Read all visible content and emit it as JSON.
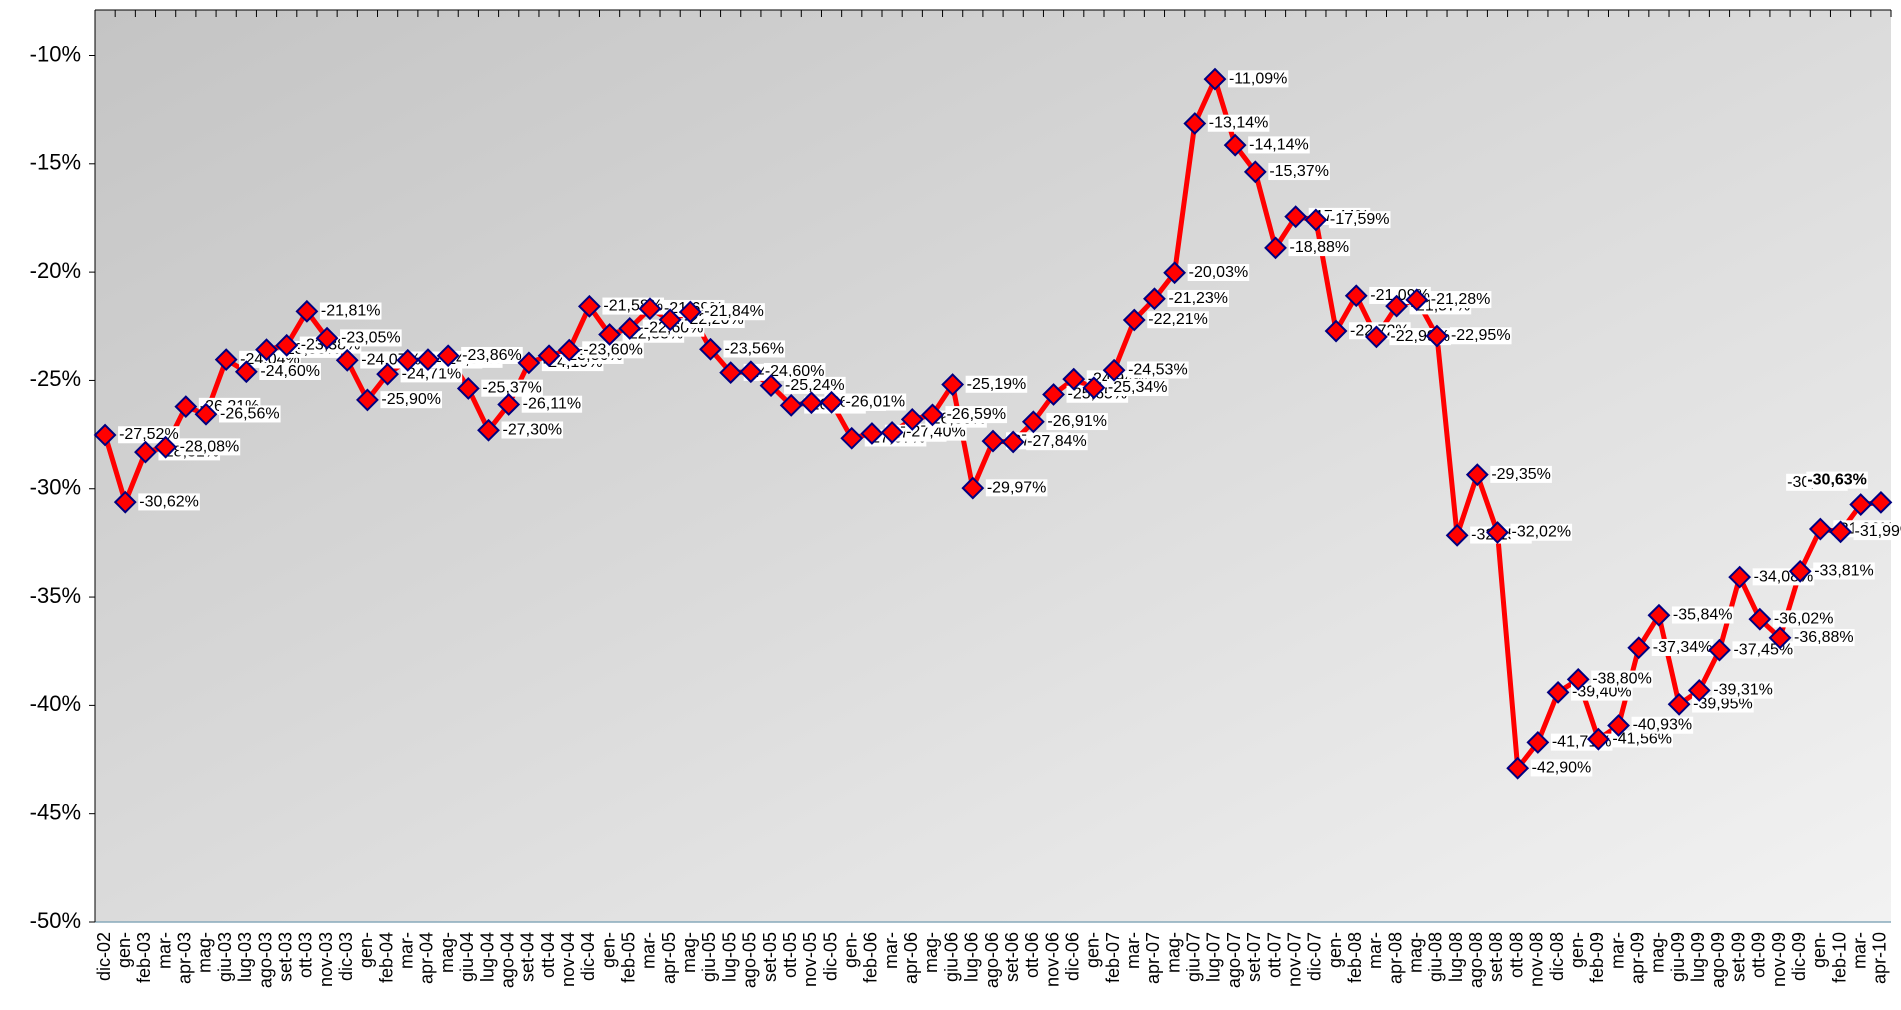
{
  "chart_data": {
    "type": "line",
    "categories": [
      "dic-02",
      "gen-",
      "feb-03",
      "mar-",
      "apr-03",
      "mag-",
      "giu-03",
      "lug-03",
      "ago-03",
      "set-03",
      "ott-03",
      "nov-03",
      "dic-03",
      "gen-",
      "feb-04",
      "mar-",
      "apr-04",
      "mag-",
      "giu-04",
      "lug-04",
      "ago-04",
      "set-04",
      "ott-04",
      "nov-04",
      "dic-04",
      "gen-",
      "feb-05",
      "mar-",
      "apr-05",
      "mag-",
      "giu-05",
      "lug-05",
      "ago-05",
      "set-05",
      "ott-05",
      "nov-05",
      "dic-05",
      "gen-",
      "feb-06",
      "mar-",
      "apr-06",
      "mag-",
      "giu-06",
      "lug-06",
      "ago-06",
      "set-06",
      "ott-06",
      "nov-06",
      "dic-06",
      "gen-",
      "feb-07",
      "mar-",
      "apr-07",
      "mag-",
      "giu-07",
      "lug-07",
      "ago-07",
      "set-07",
      "ott-07",
      "nov-07",
      "dic-07",
      "gen-",
      "feb-08",
      "mar-",
      "apr-08",
      "mag-",
      "giu-08",
      "lug-08",
      "ago-08",
      "set-08",
      "ott-08",
      "nov-08",
      "dic-08",
      "gen-",
      "feb-09",
      "mar-",
      "apr-09",
      "mag-",
      "giu-09",
      "lug-09",
      "ago-09",
      "set-09",
      "ott-09",
      "nov-09",
      "dic-09",
      "gen-",
      "feb-10",
      "mar-",
      "apr-10"
    ],
    "series": [
      {
        "color": "#ff0000",
        "marker_color": "#ff0000",
        "marker_edge": "#000080",
        "values": [
          -27.52,
          -30.62,
          -28.31,
          -28.08,
          -26.21,
          -26.56,
          -24.04,
          -24.6,
          -23.58,
          -23.38,
          -21.81,
          -23.05,
          -24.07,
          -25.9,
          -24.71,
          -24.07,
          -24.04,
          -23.86,
          -25.37,
          -27.3,
          -26.11,
          -24.19,
          -23.86,
          -23.6,
          -21.58,
          -22.88,
          -22.6,
          -21.69,
          -22.2,
          -21.84,
          -23.56,
          -24.64,
          -24.6,
          -25.24,
          -26.15,
          -26.03,
          -26.01,
          -27.67,
          -27.45,
          -27.4,
          -26.8,
          -26.59,
          -25.19,
          -29.97,
          -27.8,
          -27.84,
          -26.91,
          -25.65,
          -24.94,
          -25.34,
          -24.53,
          -22.21,
          -21.23,
          -20.03,
          -13.14,
          -11.09,
          -14.14,
          -15.37,
          -18.88,
          -17.44,
          -17.59,
          -22.72,
          -21.09,
          -22.99,
          -21.57,
          -21.28,
          -22.95,
          -32.15,
          -29.35,
          -32.02,
          -42.9,
          -41.71,
          -39.4,
          -38.8,
          -41.56,
          -40.93,
          -37.34,
          -35.84,
          -39.95,
          -39.31,
          -37.45,
          -34.08,
          -36.02,
          -36.88,
          -33.81,
          -31.86,
          -31.99,
          -30.73,
          -30.63
        ],
        "value_labels": [
          "-27,52%",
          "-30,62%",
          "-28,31%",
          "-28,08%",
          "-26,21%",
          "-26,56%",
          "-24,04%",
          "-24,60%",
          "-23,58%",
          "-23,38%",
          "-21,81%",
          "-23,05%",
          "-24,07%",
          "-25,90%",
          "-24,71%",
          "-24,07%",
          "-24,04%",
          "-23,86%",
          "-25,37%",
          "-27,30%",
          "-26,11%",
          "-24,19%",
          "-23,86%",
          "-23,60%",
          "-21,58%",
          "-22,88%",
          "-22,60%",
          "-21,69%",
          "-22,20%",
          "-21,84%",
          "-23,56%",
          "-24,64%",
          "-24,60%",
          "-25,24%",
          "-26,15%",
          "-26,03%",
          "-26,01%",
          "-27,67%",
          "-27,45%",
          "-27,40%",
          "-26,80%",
          "-26,59%",
          "-25,19%",
          "-29,97%",
          "-27,80%",
          "-27,84%",
          "-26,91%",
          "-25,65%",
          "-24,94%",
          "-25,34%",
          "-24,53%",
          "-22,21%",
          "-21,23%",
          "-20,03%",
          "-13,14%",
          "-11,09%",
          "-14,14%",
          "-15,37%",
          "-18,88%",
          "-17,44%",
          "-17,59%",
          "-22,72%",
          "-21,09%",
          "-22,99%",
          "-21,57%",
          "-21,28%",
          "-22,95%",
          "-32,15%",
          "-29,35%",
          "-32,02%",
          "-42,90%",
          "-41,71%",
          "-39,40%",
          "-38,80%",
          "-41,56%",
          "-40,93%",
          "-37,34%",
          "-35,84%",
          "-39,95%",
          "-39,31%",
          "-37,45%",
          "-34,08%",
          "-36,02%",
          "-36,88%",
          "-33,81%",
          "-31,86%",
          "-31,99%",
          "-30,73%",
          "-30,63%"
        ]
      }
    ],
    "ylim": [
      -50,
      -7.9
    ],
    "yticks": [
      {
        "value": -50,
        "label": "-50%"
      },
      {
        "value": -45,
        "label": "-45%"
      },
      {
        "value": -40,
        "label": "-40%"
      },
      {
        "value": -35,
        "label": "-35%"
      },
      {
        "value": -30,
        "label": "-30%"
      },
      {
        "value": -25,
        "label": "-25%"
      },
      {
        "value": -20,
        "label": "-20%"
      },
      {
        "value": -15,
        "label": "-15%"
      },
      {
        "value": -10,
        "label": "-10%"
      }
    ],
    "grid": false
  }
}
